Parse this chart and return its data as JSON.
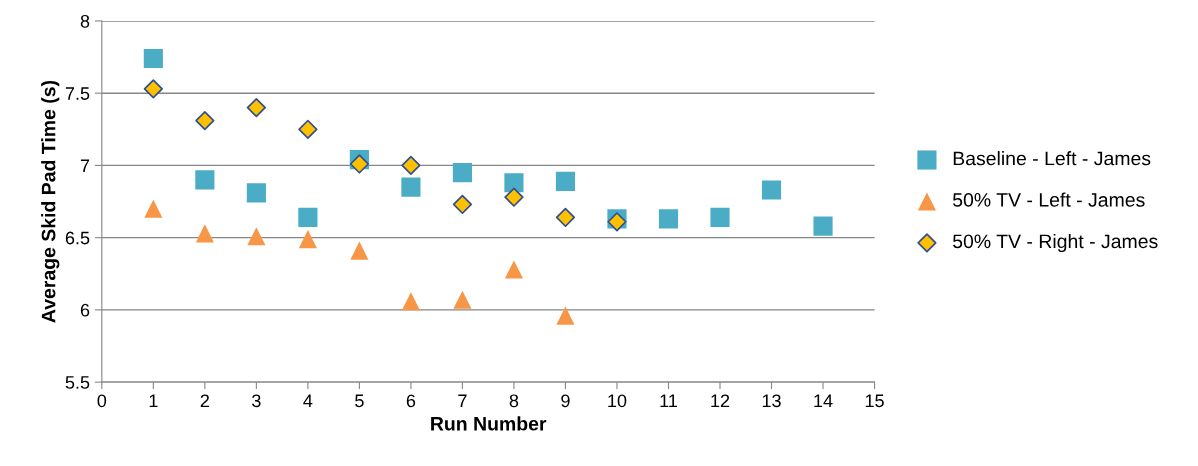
{
  "chart_data": {
    "type": "scatter",
    "xlabel": "Run Number",
    "ylabel": "Average Skid Pad Time (s)",
    "xlim": [
      0,
      15
    ],
    "xticks": [
      0,
      1,
      2,
      3,
      4,
      5,
      6,
      7,
      8,
      9,
      10,
      11,
      12,
      13,
      14,
      15
    ],
    "ylim": [
      5.5,
      8
    ],
    "yticks": [
      5.5,
      6,
      6.5,
      7,
      7.5,
      8
    ],
    "grid": "y",
    "legend": "right",
    "series": [
      {
        "name": "Baseline - Left - James",
        "color": "#4bacc6",
        "marker": "square",
        "x": [
          1,
          2,
          3,
          4,
          5,
          6,
          7,
          8,
          9,
          10,
          11,
          12,
          13,
          14
        ],
        "values": [
          7.74,
          6.9,
          6.81,
          6.64,
          7.04,
          6.85,
          6.95,
          6.88,
          6.89,
          6.63,
          6.63,
          6.64,
          6.83,
          6.58
        ]
      },
      {
        "name": "50% TV - Left - James",
        "color": "#f79646",
        "marker": "triangle",
        "x": [
          1,
          2,
          3,
          4,
          5,
          6,
          7,
          8,
          9
        ],
        "values": [
          6.7,
          6.53,
          6.51,
          6.49,
          6.41,
          6.06,
          6.07,
          6.28,
          5.96
        ]
      },
      {
        "name": "50% TV - Right - James",
        "color": "#ffc000",
        "marker": "diamond",
        "x": [
          1,
          2,
          3,
          4,
          5,
          6,
          7,
          8,
          9,
          10
        ],
        "values": [
          7.53,
          7.31,
          7.4,
          7.25,
          7.01,
          7.0,
          6.73,
          6.78,
          6.64,
          6.61
        ]
      }
    ]
  }
}
